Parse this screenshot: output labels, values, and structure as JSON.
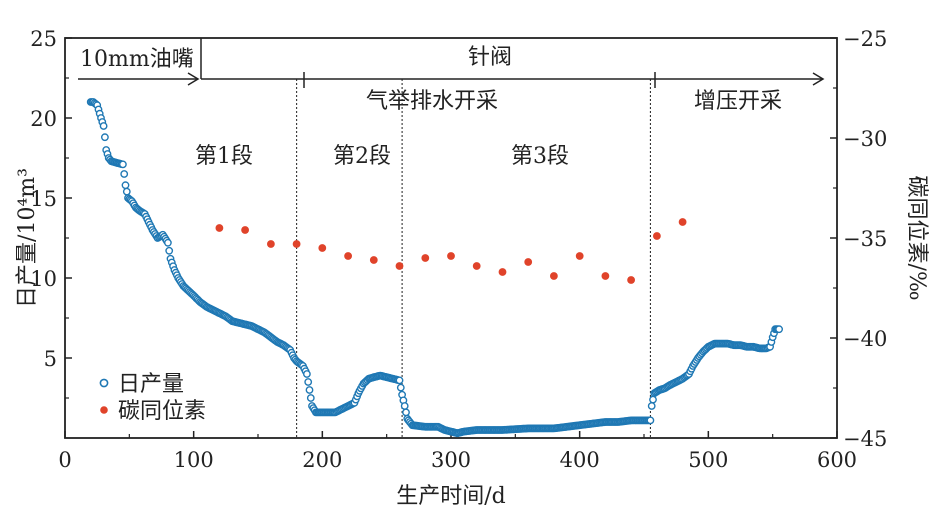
{
  "chart_data": {
    "type": "scatter",
    "xlabel": "生产时间/d",
    "ylabel_left": "日产量/10⁴m³",
    "ylabel_right": "碳同位素/‰",
    "xlim": [
      0,
      600
    ],
    "ylim_left": [
      0,
      25
    ],
    "ylim_right": [
      -45,
      -25
    ],
    "x_ticks": [
      "0",
      "100",
      "200",
      "300",
      "400",
      "500",
      "600"
    ],
    "y_left_ticks": [
      "5",
      "10",
      "15",
      "20",
      "25"
    ],
    "y_right_ticks": [
      "−45",
      "−40",
      "−35",
      "−30",
      "−25"
    ],
    "legend": {
      "placement": "bottom-left",
      "items": [
        "日产量",
        "碳同位素"
      ]
    },
    "colors": {
      "production": "#1f78b4",
      "isotope": "#e0432a"
    },
    "annotations": {
      "choke": "10mm油嘴",
      "needle_valve": "针阀",
      "gas_lift": "气举排水开采",
      "boost": "增压开采",
      "stage1": "第1段",
      "stage2": "第2段",
      "stage3": "第3段"
    },
    "stage_boundaries_x": [
      180,
      262,
      455
    ],
    "series": [
      {
        "name": "日产量",
        "axis": "left",
        "marker": "hollow-circle",
        "points": [
          [
            20,
            21.0
          ],
          [
            22,
            21.0
          ],
          [
            25,
            20.8
          ],
          [
            28,
            20.0
          ],
          [
            30,
            19.5
          ],
          [
            31,
            18.8
          ],
          [
            32,
            18.0
          ],
          [
            34,
            17.5
          ],
          [
            36,
            17.3
          ],
          [
            40,
            17.2
          ],
          [
            45,
            17.1
          ],
          [
            46,
            16.5
          ],
          [
            47,
            15.8
          ],
          [
            49,
            15.0
          ],
          [
            52,
            14.8
          ],
          [
            55,
            14.4
          ],
          [
            58,
            14.2
          ],
          [
            62,
            14.0
          ],
          [
            65,
            13.5
          ],
          [
            68,
            13.0
          ],
          [
            72,
            12.5
          ],
          [
            76,
            12.7
          ],
          [
            80,
            12.2
          ],
          [
            82,
            11.2
          ],
          [
            85,
            10.5
          ],
          [
            88,
            10.0
          ],
          [
            92,
            9.5
          ],
          [
            96,
            9.2
          ],
          [
            100,
            8.9
          ],
          [
            105,
            8.5
          ],
          [
            110,
            8.2
          ],
          [
            115,
            8.0
          ],
          [
            120,
            7.8
          ],
          [
            125,
            7.6
          ],
          [
            130,
            7.3
          ],
          [
            135,
            7.2
          ],
          [
            140,
            7.1
          ],
          [
            145,
            7.0
          ],
          [
            150,
            6.8
          ],
          [
            155,
            6.6
          ],
          [
            160,
            6.3
          ],
          [
            165,
            6.0
          ],
          [
            170,
            5.8
          ],
          [
            175,
            5.5
          ],
          [
            178,
            5.0
          ],
          [
            180,
            4.8
          ],
          [
            185,
            4.5
          ],
          [
            188,
            4.0
          ],
          [
            190,
            3.0
          ],
          [
            192,
            2.0
          ],
          [
            195,
            1.6
          ],
          [
            200,
            1.6
          ],
          [
            210,
            1.6
          ],
          [
            215,
            1.8
          ],
          [
            220,
            2.0
          ],
          [
            225,
            2.2
          ],
          [
            228,
            2.8
          ],
          [
            232,
            3.4
          ],
          [
            236,
            3.7
          ],
          [
            240,
            3.8
          ],
          [
            245,
            3.9
          ],
          [
            250,
            3.8
          ],
          [
            255,
            3.7
          ],
          [
            260,
            3.6
          ],
          [
            262,
            2.7
          ],
          [
            264,
            2.0
          ],
          [
            266,
            1.2
          ],
          [
            270,
            0.8
          ],
          [
            280,
            0.7
          ],
          [
            290,
            0.7
          ],
          [
            295,
            0.5
          ],
          [
            300,
            0.4
          ],
          [
            305,
            0.3
          ],
          [
            310,
            0.4
          ],
          [
            320,
            0.5
          ],
          [
            330,
            0.5
          ],
          [
            340,
            0.5
          ],
          [
            350,
            0.55
          ],
          [
            360,
            0.6
          ],
          [
            370,
            0.6
          ],
          [
            380,
            0.6
          ],
          [
            390,
            0.7
          ],
          [
            400,
            0.8
          ],
          [
            410,
            0.9
          ],
          [
            420,
            1.0
          ],
          [
            430,
            1.0
          ],
          [
            440,
            1.1
          ],
          [
            450,
            1.1
          ],
          [
            455,
            1.1
          ],
          [
            456,
            2.0
          ],
          [
            458,
            2.8
          ],
          [
            462,
            3.0
          ],
          [
            466,
            3.1
          ],
          [
            470,
            3.3
          ],
          [
            475,
            3.5
          ],
          [
            480,
            3.7
          ],
          [
            485,
            4.0
          ],
          [
            488,
            4.5
          ],
          [
            492,
            5.0
          ],
          [
            496,
            5.4
          ],
          [
            500,
            5.7
          ],
          [
            505,
            5.9
          ],
          [
            510,
            5.9
          ],
          [
            515,
            5.9
          ],
          [
            520,
            5.8
          ],
          [
            525,
            5.8
          ],
          [
            530,
            5.7
          ],
          [
            535,
            5.7
          ],
          [
            540,
            5.6
          ],
          [
            545,
            5.6
          ],
          [
            548,
            5.7
          ],
          [
            550,
            6.3
          ],
          [
            552,
            6.8
          ],
          [
            555,
            6.8
          ]
        ]
      },
      {
        "name": "碳同位素",
        "axis": "right",
        "marker": "filled-circle",
        "points": [
          [
            120,
            -34.5
          ],
          [
            140,
            -34.6
          ],
          [
            160,
            -35.3
          ],
          [
            180,
            -35.3
          ],
          [
            200,
            -35.5
          ],
          [
            220,
            -35.9
          ],
          [
            240,
            -36.1
          ],
          [
            260,
            -36.4
          ],
          [
            280,
            -36.0
          ],
          [
            300,
            -35.9
          ],
          [
            320,
            -36.4
          ],
          [
            340,
            -36.7
          ],
          [
            360,
            -36.2
          ],
          [
            380,
            -36.9
          ],
          [
            400,
            -35.9
          ],
          [
            420,
            -36.9
          ],
          [
            440,
            -37.1
          ],
          [
            460,
            -34.9
          ],
          [
            480,
            -34.2
          ]
        ]
      }
    ]
  }
}
